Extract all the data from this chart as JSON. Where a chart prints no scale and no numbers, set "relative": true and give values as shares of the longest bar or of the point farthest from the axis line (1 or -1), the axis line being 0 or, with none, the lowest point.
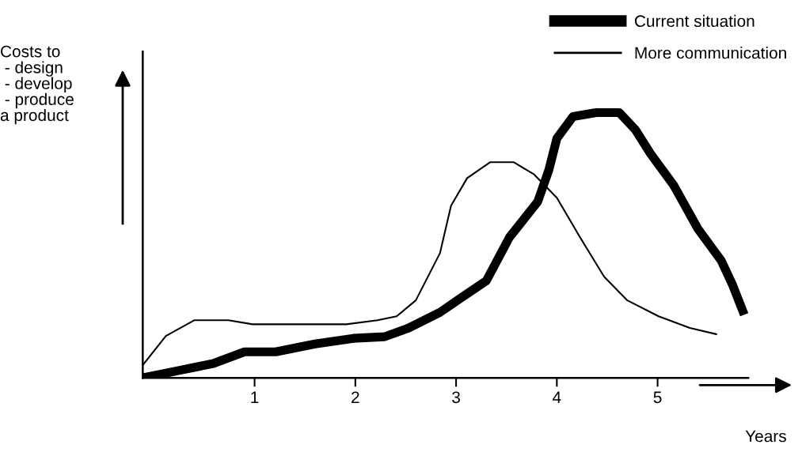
{
  "chart_data": {
    "type": "line",
    "relative": true,
    "xlabel": "Years",
    "ylabel": "Costs to\n - design\n - develop\n - produce\na product",
    "xlim": [
      -0.11,
      5.9
    ],
    "xticks": [
      1,
      2,
      3,
      4,
      5
    ],
    "grid": false,
    "legend": "top right",
    "marker": "none",
    "line_style": "solid",
    "series": [
      {
        "name": "Current situation",
        "color": "#000000",
        "x": [
          -0.11,
          0.2,
          0.59,
          0.9,
          1.21,
          1.6,
          1.98,
          2.29,
          2.53,
          2.84,
          3.07,
          3.3,
          3.53,
          3.81,
          3.92,
          4.0,
          4.16,
          4.39,
          4.62,
          4.78,
          4.93,
          5.16,
          5.4,
          5.63,
          5.74,
          5.86
        ],
        "values": [
          0,
          0.024,
          0.054,
          0.098,
          0.098,
          0.128,
          0.149,
          0.155,
          0.188,
          0.247,
          0.307,
          0.366,
          0.53,
          0.664,
          0.783,
          0.902,
          0.985,
          1,
          1,
          0.935,
          0.845,
          0.726,
          0.562,
          0.443,
          0.354,
          0.238
        ]
      },
      {
        "name": "More communication",
        "color": "#000000",
        "x": [
          -0.11,
          0.12,
          0.4,
          0.74,
          0.98,
          1.91,
          2.22,
          2.41,
          2.6,
          2.84,
          2.95,
          3.11,
          3.34,
          3.57,
          3.77,
          4.0,
          4.23,
          4.47,
          4.7,
          5.01,
          5.32,
          5.59
        ],
        "values": [
          0.048,
          0.158,
          0.217,
          0.217,
          0.202,
          0.202,
          0.217,
          0.232,
          0.292,
          0.47,
          0.649,
          0.753,
          0.813,
          0.813,
          0.768,
          0.679,
          0.53,
          0.381,
          0.292,
          0.232,
          0.188,
          0.164
        ]
      }
    ]
  }
}
